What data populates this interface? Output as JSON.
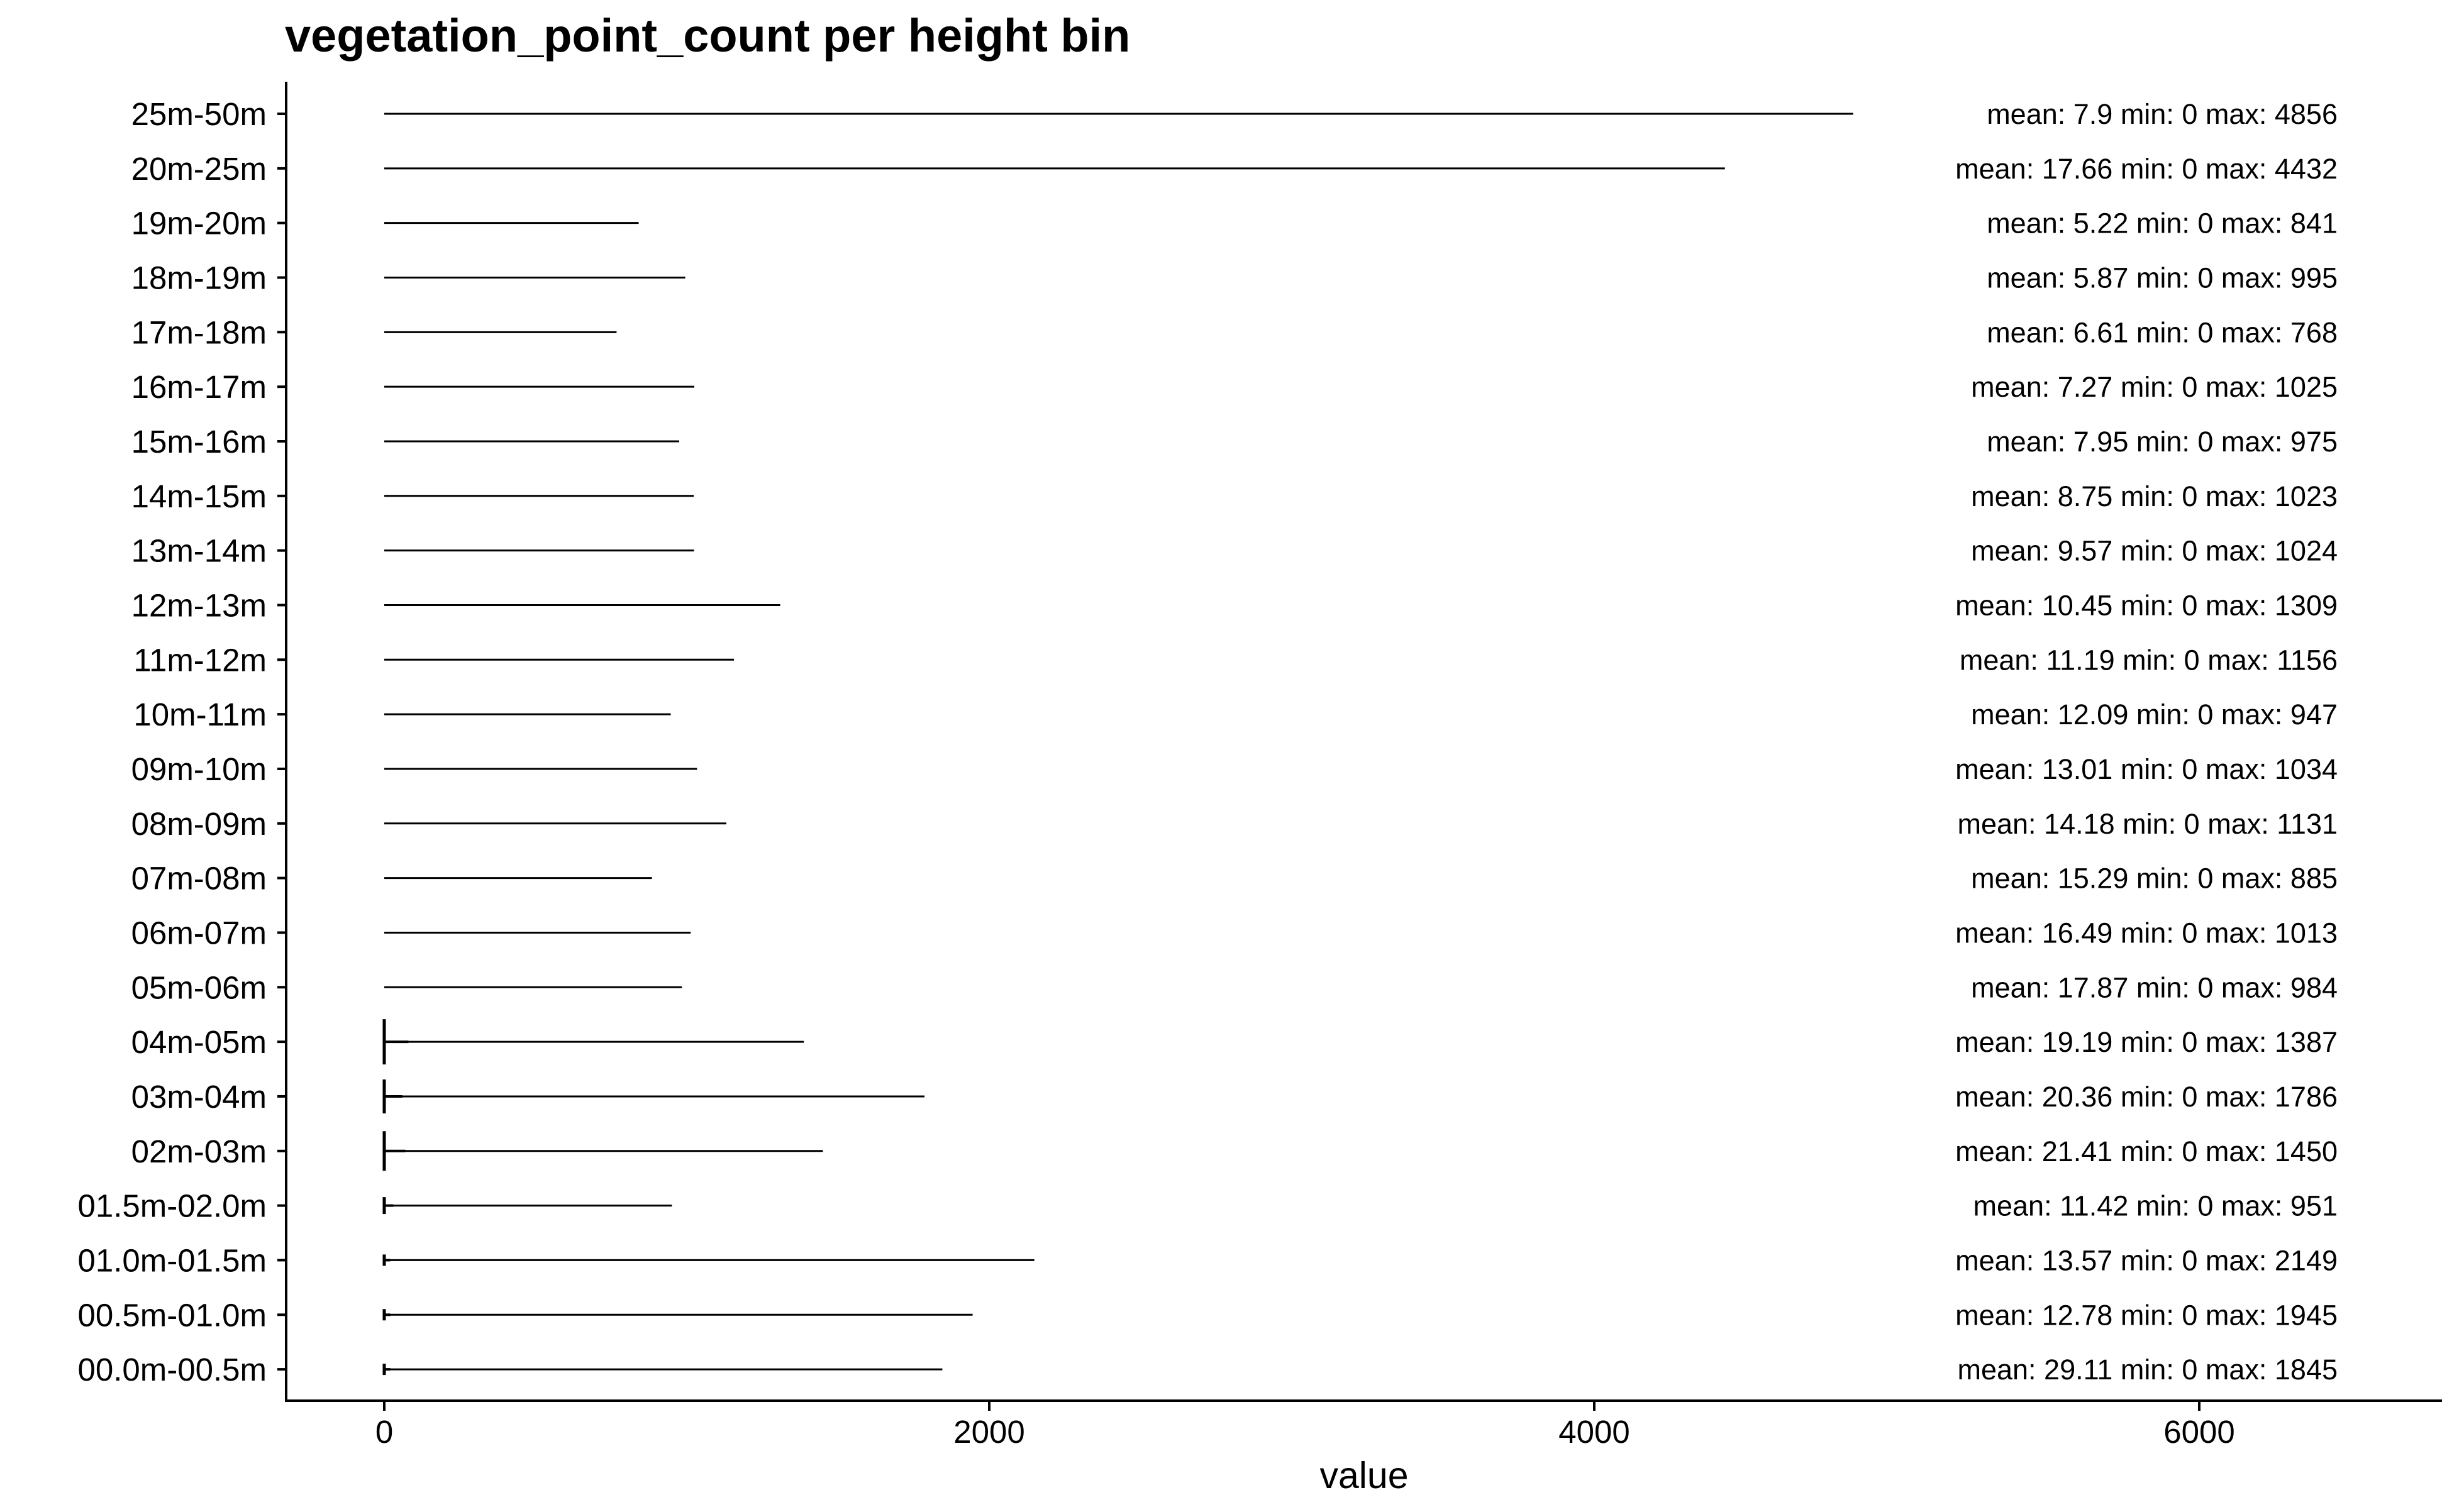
{
  "chart_data": {
    "type": "boxplot",
    "title": "vegetation_point_count per height bin",
    "xlabel": "value",
    "ylabel": "",
    "xlim": [
      -160,
      6800
    ],
    "xticks": [
      0,
      2000,
      4000,
      6000
    ],
    "xtick_labels": [
      "0",
      "2000",
      "4000",
      "6000"
    ],
    "grid": false,
    "legend": "none",
    "colors": {
      "line": "#000000",
      "background": "#ffffff"
    },
    "categories": [
      "25m-50m",
      "20m-25m",
      "19m-20m",
      "18m-19m",
      "17m-18m",
      "16m-17m",
      "15m-16m",
      "14m-15m",
      "13m-14m",
      "12m-13m",
      "11m-12m",
      "10m-11m",
      "09m-10m",
      "08m-09m",
      "07m-08m",
      "06m-07m",
      "05m-06m",
      "04m-05m",
      "03m-04m",
      "02m-03m",
      "01.5m-02.0m",
      "01.0m-01.5m",
      "00.5m-01.0m",
      "00.0m-00.5m"
    ],
    "mean": [
      7.9,
      17.66,
      5.22,
      5.87,
      6.61,
      7.27,
      7.95,
      8.75,
      9.57,
      10.45,
      11.19,
      12.09,
      13.01,
      14.18,
      15.29,
      16.49,
      17.87,
      19.19,
      20.36,
      21.41,
      11.42,
      13.57,
      12.78,
      29.11
    ],
    "min": [
      0,
      0,
      0,
      0,
      0,
      0,
      0,
      0,
      0,
      0,
      0,
      0,
      0,
      0,
      0,
      0,
      0,
      0,
      0,
      0,
      0,
      0,
      0,
      0
    ],
    "max": [
      4856,
      4432,
      841,
      995,
      768,
      1025,
      975,
      1023,
      1024,
      1309,
      1156,
      947,
      1034,
      1131,
      885,
      1013,
      984,
      1387,
      1786,
      1450,
      951,
      2149,
      1945,
      1845
    ],
    "whisker_end": [
      0,
      0,
      0,
      0,
      0,
      0,
      0,
      0,
      0,
      0,
      0,
      0,
      0,
      0,
      0,
      0,
      0,
      80,
      60,
      70,
      30,
      20,
      20,
      20
    ],
    "annotations": [
      "mean: 7.9 min: 0 max: 4856",
      "mean: 17.66 min: 0 max: 4432",
      "mean: 5.22 min: 0 max: 841",
      "mean: 5.87 min: 0 max: 995",
      "mean: 6.61 min: 0 max: 768",
      "mean: 7.27 min: 0 max: 1025",
      "mean: 7.95 min: 0 max: 975",
      "mean: 8.75 min: 0 max: 1023",
      "mean: 9.57 min: 0 max: 1024",
      "mean: 10.45 min: 0 max: 1309",
      "mean: 11.19 min: 0 max: 1156",
      "mean: 12.09 min: 0 max: 947",
      "mean: 13.01 min: 0 max: 1034",
      "mean: 14.18 min: 0 max: 1131",
      "mean: 15.29 min: 0 max: 885",
      "mean: 16.49 min: 0 max: 1013",
      "mean: 17.87 min: 0 max: 984",
      "mean: 19.19 min: 0 max: 1387",
      "mean: 20.36 min: 0 max: 1786",
      "mean: 21.41 min: 0 max: 1450",
      "mean: 11.42 min: 0 max: 951",
      "mean: 13.57 min: 0 max: 2149",
      "mean: 12.78 min: 0 max: 1945",
      "mean: 29.11 min: 0 max: 1845"
    ]
  }
}
